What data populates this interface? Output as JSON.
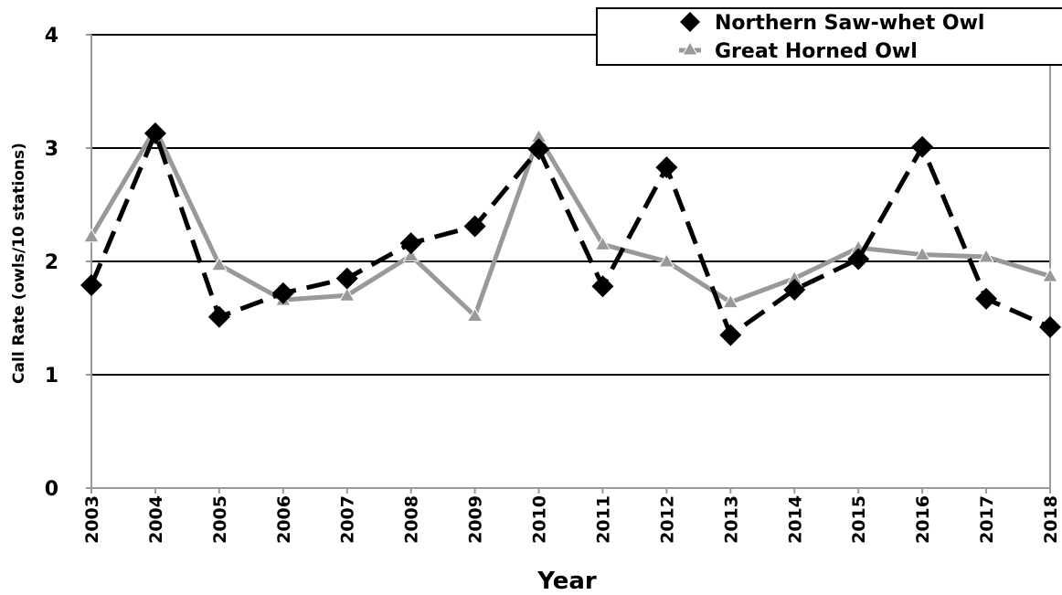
{
  "chart_data": {
    "type": "line",
    "title": "",
    "xlabel": "Year",
    "ylabel": "Call Rate (owls/10 stations)",
    "ylim": [
      0,
      4
    ],
    "yticks": [
      "0",
      "1",
      "2",
      "3",
      "4"
    ],
    "grid": "horizontal",
    "legend_position": "top-right",
    "categories": [
      "2003",
      "2004",
      "2005",
      "2006",
      "2007",
      "2008",
      "2009",
      "2010",
      "2011",
      "2012",
      "2013",
      "2014",
      "2015",
      "2016",
      "2017",
      "2018"
    ],
    "series": [
      {
        "name": "Northern Saw-whet Owl",
        "color": "#000000",
        "marker": "diamond",
        "line_style": "dashed",
        "values": [
          1.79,
          3.13,
          1.51,
          1.72,
          1.85,
          2.16,
          2.31,
          2.99,
          1.78,
          2.83,
          1.35,
          1.75,
          2.02,
          3.01,
          1.67,
          1.42
        ]
      },
      {
        "name": "Great Horned Owl",
        "color": "#999999",
        "marker": "triangle",
        "line_style": "solid",
        "values": [
          2.22,
          3.17,
          1.97,
          1.66,
          1.7,
          2.05,
          1.52,
          3.1,
          2.15,
          2.0,
          1.64,
          1.85,
          2.12,
          2.06,
          2.04,
          1.87
        ]
      }
    ]
  }
}
